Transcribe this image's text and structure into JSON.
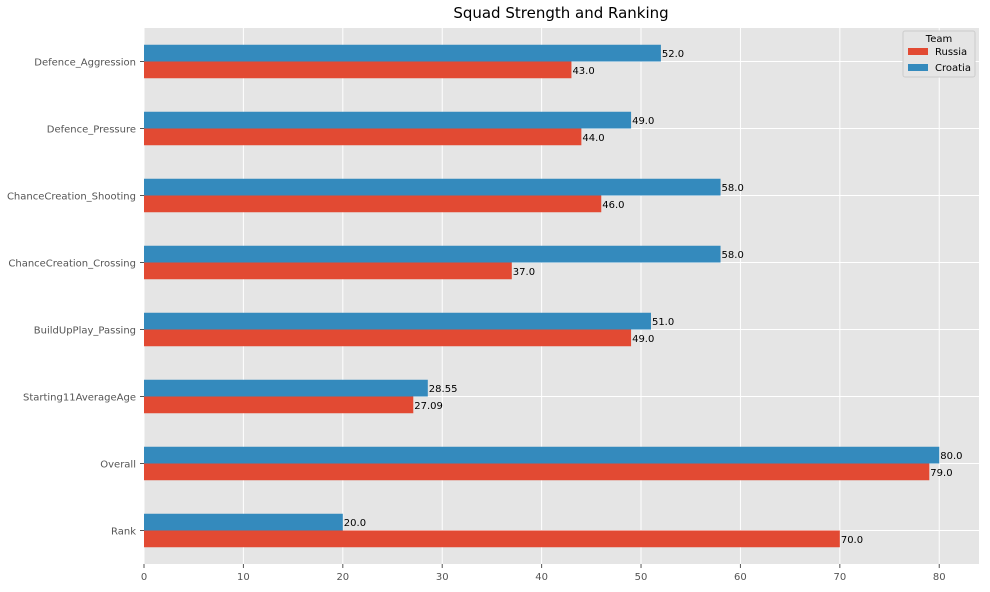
{
  "chart_data": {
    "type": "bar",
    "orientation": "horizontal",
    "title": "Squad Strength and Ranking",
    "xlabel": "",
    "ylabel": "",
    "xlim": [
      0,
      84
    ],
    "xticks": [
      0,
      10,
      20,
      30,
      40,
      50,
      60,
      70,
      80
    ],
    "grid": true,
    "legend": {
      "title": "Team",
      "position": "top-right"
    },
    "categories": [
      "Rank",
      "Overall",
      "Starting11AverageAge",
      "BuildUpPlay_Passing",
      "ChanceCreation_Crossing",
      "ChanceCreation_Shooting",
      "Defence_Pressure",
      "Defence_Aggression"
    ],
    "series": [
      {
        "name": "Russia",
        "color": "#e24a33",
        "values": [
          70.0,
          79.0,
          27.09,
          49.0,
          37.0,
          46.0,
          44.0,
          43.0
        ],
        "labels": [
          "70.0",
          "79.0",
          "27.09",
          "49.0",
          "37.0",
          "46.0",
          "44.0",
          "43.0"
        ]
      },
      {
        "name": "Croatia",
        "color": "#348abd",
        "values": [
          20.0,
          80.0,
          28.55,
          51.0,
          58.0,
          58.0,
          49.0,
          52.0
        ],
        "labels": [
          "20.0",
          "80.0",
          "28.55",
          "51.0",
          "58.0",
          "58.0",
          "49.0",
          "52.0"
        ]
      }
    ]
  },
  "style": {
    "plot_background": "#e5e5e5",
    "grid_color": "#ffffff"
  }
}
